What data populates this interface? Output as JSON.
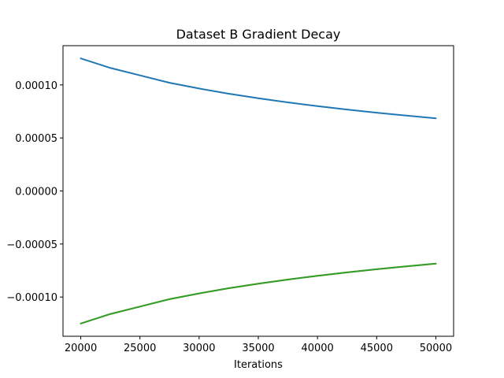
{
  "chart_data": {
    "type": "line",
    "title": "Dataset B Gradient Decay",
    "xlabel": "Iterations",
    "ylabel": "",
    "xlim": [
      18500,
      51500
    ],
    "ylim": [
      -0.000137,
      0.000137
    ],
    "xticks": [
      20000,
      25000,
      30000,
      35000,
      40000,
      45000,
      50000
    ],
    "xtick_labels": [
      "20000",
      "25000",
      "30000",
      "35000",
      "40000",
      "45000",
      "50000"
    ],
    "yticks": [
      0.0001,
      5e-05,
      0.0,
      -5e-05,
      -0.0001
    ],
    "ytick_labels": [
      "0.00010",
      "0.00005",
      "0.00000",
      "−0.00005",
      "−0.00010"
    ],
    "grid": false,
    "x": [
      20000,
      22500,
      25000,
      27500,
      30000,
      32500,
      35000,
      37500,
      40000,
      42500,
      45000,
      47500,
      50000
    ],
    "series": [
      {
        "color": "#1f77b4",
        "values": [
          0.000125,
          0.000116,
          0.000109,
          0.000102,
          9.66e-05,
          9.17e-05,
          8.74e-05,
          8.35e-05,
          8e-05,
          7.68e-05,
          7.38e-05,
          7.11e-05,
          6.85e-05
        ]
      },
      {
        "color": "#ff7f0e",
        "values": [
          -0.000125,
          -0.000116,
          -0.000109,
          -0.000102,
          -9.66e-05,
          -9.17e-05,
          -8.74e-05,
          -8.35e-05,
          -8e-05,
          -7.68e-05,
          -7.38e-05,
          -7.11e-05,
          -6.85e-05
        ]
      },
      {
        "color": "#2ca02c",
        "values": [
          -0.000125,
          -0.000116,
          -0.000109,
          -0.000102,
          -9.66e-05,
          -9.17e-05,
          -8.74e-05,
          -8.35e-05,
          -8e-05,
          -7.68e-05,
          -7.38e-05,
          -7.11e-05,
          -6.85e-05
        ]
      }
    ]
  }
}
